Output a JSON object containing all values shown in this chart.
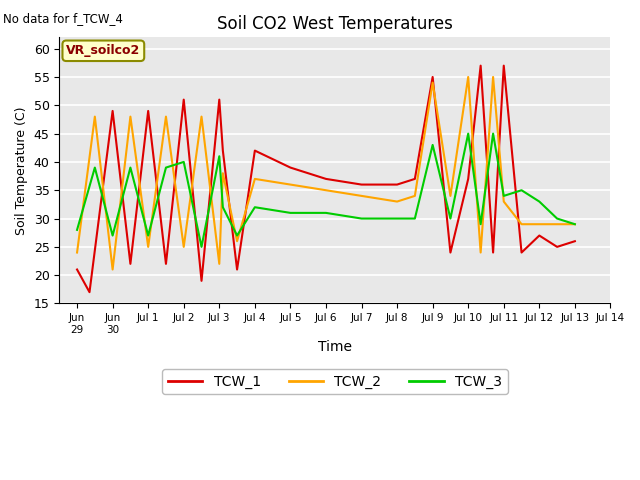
{
  "title": "Soil CO2 West Temperatures",
  "xlabel": "Time",
  "ylabel": "Soil Temperature (C)",
  "note": "No data for f_TCW_4",
  "annotation": "VR_soilco2",
  "ylim": [
    15,
    62
  ],
  "yticks": [
    15,
    20,
    25,
    30,
    35,
    40,
    45,
    50,
    55,
    60
  ],
  "background_color": "#e8e8e8",
  "grid_color": "#ffffff",
  "tcw1_color": "#dd0000",
  "tcw2_color": "#ffa500",
  "tcw3_color": "#00cc00",
  "x_day_labels": [
    "Jun\n29",
    "Jun\n30",
    "Jul 1",
    "Jul 2",
    "Jul 3",
    "Jul 4",
    "Jul 5",
    "Jul 6",
    "Jul 7",
    "Jul 8",
    "Jul 9",
    "Jul 10",
    "Jul 11",
    "Jul 12",
    "Jul 13",
    "Jul 14"
  ],
  "tcw1_x": [
    0.0,
    0.35,
    1.0,
    1.5,
    2.0,
    2.5,
    3.0,
    3.5,
    4.0,
    4.1,
    4.5,
    5.0,
    6.0,
    7.0,
    8.0,
    9.0,
    9.5,
    10.0,
    10.5,
    11.0,
    11.35,
    11.7,
    12.0,
    12.5,
    13.0,
    13.5,
    14.0
  ],
  "tcw1_y": [
    21,
    17,
    49,
    22,
    49,
    22,
    51,
    19,
    51,
    42,
    21,
    42,
    39,
    37,
    36,
    36,
    37,
    55,
    24,
    37,
    57,
    24,
    57,
    24,
    27,
    25,
    26
  ],
  "tcw2_x": [
    0.0,
    0.5,
    1.0,
    1.5,
    2.0,
    2.5,
    3.0,
    3.5,
    4.0,
    4.1,
    4.5,
    5.0,
    6.0,
    7.0,
    8.0,
    9.0,
    9.5,
    10.0,
    10.5,
    11.0,
    11.35,
    11.7,
    12.0,
    12.5,
    13.0,
    13.5,
    14.0
  ],
  "tcw2_y": [
    24,
    48,
    21,
    48,
    25,
    48,
    25,
    48,
    22,
    38,
    26,
    37,
    36,
    35,
    34,
    33,
    34,
    54,
    34,
    55,
    24,
    55,
    33,
    29,
    29,
    29,
    29
  ],
  "tcw3_x": [
    0.0,
    0.5,
    1.0,
    1.5,
    2.0,
    2.5,
    3.0,
    3.5,
    4.0,
    4.1,
    4.5,
    5.0,
    6.0,
    7.0,
    8.0,
    9.0,
    9.5,
    10.0,
    10.5,
    11.0,
    11.35,
    11.7,
    12.0,
    12.5,
    13.0,
    13.5,
    14.0
  ],
  "tcw3_y": [
    28,
    39,
    27,
    39,
    27,
    39,
    40,
    25,
    41,
    32,
    27,
    32,
    31,
    31,
    30,
    30,
    30,
    43,
    30,
    45,
    29,
    45,
    34,
    35,
    33,
    30,
    29
  ]
}
